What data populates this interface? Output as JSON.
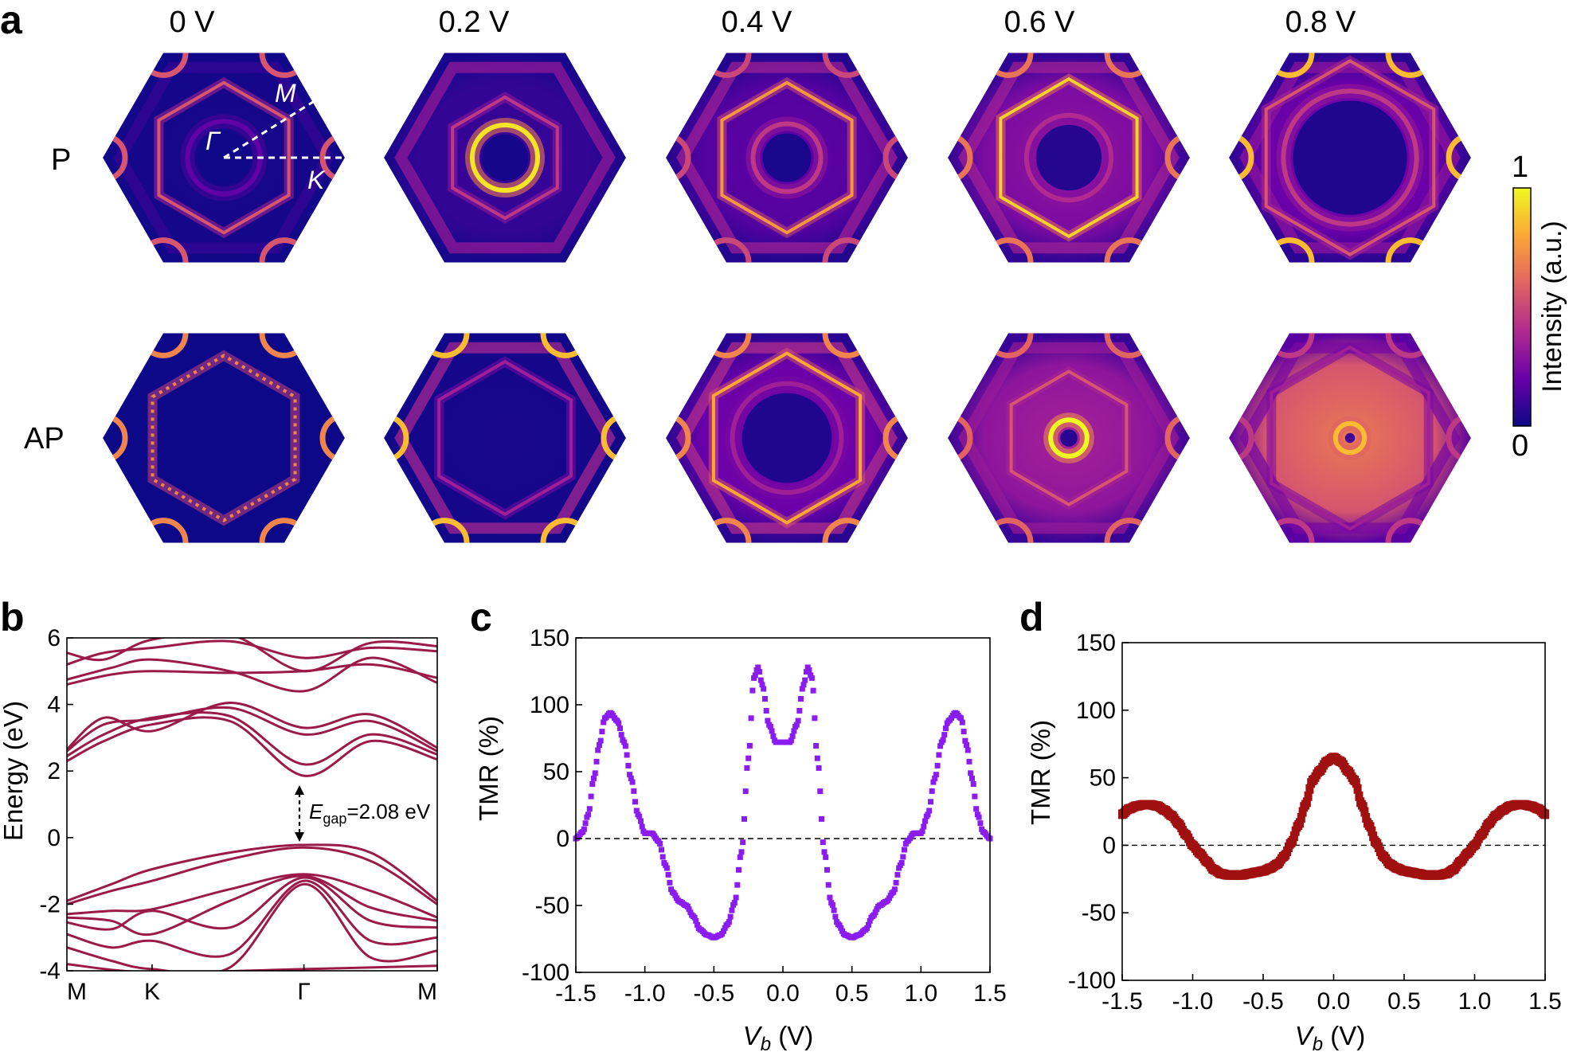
{
  "panel_labels": {
    "a": "a",
    "b": "b",
    "c": "c",
    "d": "d"
  },
  "panel_a": {
    "voltages": [
      "0 V",
      "0.2 V",
      "0.4 V",
      "0.6 V",
      "0.8 V"
    ],
    "rows": [
      "P",
      "AP"
    ],
    "k_labels": {
      "gamma": "Γ",
      "m": "M",
      "k": "K"
    },
    "colorbar": {
      "max": "1",
      "min": "0",
      "label": "Intensity (a.u.)",
      "colors": [
        "#0d0887",
        "#6a00a8",
        "#b12a90",
        "#e16462",
        "#fca636",
        "#f0f921"
      ]
    },
    "maps": [
      [
        {
          "outer_ring": 0.62,
          "outer_int": 0.55,
          "inner_ring": 0.3,
          "inner_int": 0.18,
          "corner_int": 0.55,
          "edge_int": 0.15,
          "fill": 0.02
        },
        {
          "outer_ring": 0.5,
          "outer_int": 0.45,
          "inner_ring": 0.27,
          "inner_int": 0.95,
          "corner_int": 0.05,
          "edge_int": 0.55,
          "fill": 0.08
        },
        {
          "outer_ring": 0.62,
          "outer_int": 0.75,
          "inner_ring": 0.28,
          "inner_int": 0.45,
          "corner_int": 0.5,
          "edge_int": 0.6,
          "fill": 0.15
        },
        {
          "outer_ring": 0.65,
          "outer_int": 0.9,
          "inner_ring": 0.35,
          "inner_int": 0.4,
          "corner_int": 0.65,
          "edge_int": 0.6,
          "fill": 0.25
        },
        {
          "outer_ring": 0.8,
          "outer_int": 0.55,
          "inner_ring": 0.55,
          "inner_int": 0.45,
          "corner_int": 0.85,
          "edge_int": 0.5,
          "fill": 0.2
        }
      ],
      [
        {
          "outer_ring": 0.68,
          "outer_int": 0.7,
          "inner_ring": 0.0,
          "inner_int": 0.0,
          "corner_int": 0.7,
          "edge_int": 0.05,
          "fill": 0.0
        },
        {
          "outer_ring": 0.63,
          "outer_int": 0.35,
          "inner_ring": 0.0,
          "inner_int": 0.0,
          "corner_int": 0.85,
          "edge_int": 0.65,
          "fill": 0.02
        },
        {
          "outer_ring": 0.7,
          "outer_int": 0.8,
          "inner_ring": 0.45,
          "inner_int": 0.35,
          "corner_int": 0.7,
          "edge_int": 0.7,
          "fill": 0.2
        },
        {
          "outer_ring": 0.55,
          "outer_int": 0.55,
          "inner_ring": 0.15,
          "inner_int": 1.0,
          "corner_int": 0.6,
          "edge_int": 0.55,
          "fill": 0.3
        },
        {
          "outer_ring": 0.75,
          "outer_int": 0.35,
          "inner_ring": 0.12,
          "inner_int": 0.85,
          "corner_int": 0.45,
          "edge_int": 0.4,
          "fill": 0.55
        }
      ]
    ]
  },
  "chart_data": [
    {
      "panel": "b",
      "type": "line",
      "ylabel": "Energy (eV)",
      "ylim": [
        -4,
        6
      ],
      "yticks": [
        "-4",
        "-2",
        "0",
        "2",
        "4",
        "6"
      ],
      "xtick_labels": [
        "M",
        "K",
        "Γ",
        "M"
      ],
      "xtick_positions": [
        0,
        0.23,
        0.64,
        1.0
      ],
      "annotation": {
        "main": "E",
        "sub": "gap",
        "rest": "=2.08 eV"
      },
      "gap": {
        "from": -0.22,
        "to": 1.86
      },
      "color": "#9b1b48",
      "bands": [
        [
          [
            0,
            4.6
          ],
          [
            0.12,
            4.9
          ],
          [
            0.23,
            5.0
          ],
          [
            0.44,
            4.95
          ],
          [
            0.64,
            5.0
          ],
          [
            0.82,
            5.2
          ],
          [
            1.0,
            4.8
          ]
        ],
        [
          [
            0,
            4.75
          ],
          [
            0.12,
            5.1
          ],
          [
            0.23,
            5.35
          ],
          [
            0.44,
            5.0
          ],
          [
            0.64,
            4.4
          ],
          [
            0.82,
            5.4
          ],
          [
            1.0,
            4.65
          ]
        ],
        [
          [
            0,
            5.2
          ],
          [
            0.1,
            5.55
          ],
          [
            0.23,
            5.7
          ],
          [
            0.44,
            5.9
          ],
          [
            0.64,
            5.4
          ],
          [
            0.82,
            5.7
          ],
          [
            1.0,
            5.6
          ]
        ],
        [
          [
            0,
            5.55
          ],
          [
            0.1,
            5.35
          ],
          [
            0.23,
            5.95
          ],
          [
            0.44,
            6.1
          ],
          [
            0.64,
            5.0
          ],
          [
            0.82,
            5.85
          ],
          [
            1.0,
            5.75
          ]
        ],
        [
          [
            0,
            2.3
          ],
          [
            0.1,
            2.9
          ],
          [
            0.23,
            3.4
          ],
          [
            0.44,
            3.5
          ],
          [
            0.64,
            1.86
          ],
          [
            0.82,
            2.9
          ],
          [
            1.0,
            2.35
          ]
        ],
        [
          [
            0,
            2.45
          ],
          [
            0.1,
            3.1
          ],
          [
            0.23,
            3.6
          ],
          [
            0.44,
            3.65
          ],
          [
            0.64,
            2.2
          ],
          [
            0.82,
            3.1
          ],
          [
            1.0,
            2.5
          ]
        ],
        [
          [
            0,
            2.6
          ],
          [
            0.1,
            3.4
          ],
          [
            0.23,
            3.55
          ],
          [
            0.44,
            3.9
          ],
          [
            0.64,
            3.1
          ],
          [
            0.82,
            3.5
          ],
          [
            1.0,
            2.6
          ]
        ],
        [
          [
            0,
            2.65
          ],
          [
            0.1,
            3.6
          ],
          [
            0.23,
            3.2
          ],
          [
            0.44,
            4.05
          ],
          [
            0.64,
            3.3
          ],
          [
            0.82,
            3.7
          ],
          [
            1.0,
            2.7
          ]
        ],
        [
          [
            0,
            -1.9
          ],
          [
            0.12,
            -1.4
          ],
          [
            0.23,
            -0.95
          ],
          [
            0.44,
            -0.45
          ],
          [
            0.64,
            -0.22
          ],
          [
            0.82,
            -0.45
          ],
          [
            1.0,
            -1.9
          ]
        ],
        [
          [
            0,
            -2.0
          ],
          [
            0.12,
            -1.6
          ],
          [
            0.23,
            -1.3
          ],
          [
            0.44,
            -0.65
          ],
          [
            0.64,
            -0.3
          ],
          [
            0.82,
            -0.7
          ],
          [
            1.0,
            -2.0
          ]
        ],
        [
          [
            0,
            -2.3
          ],
          [
            0.12,
            -2.2
          ],
          [
            0.23,
            -2.15
          ],
          [
            0.44,
            -1.55
          ],
          [
            0.64,
            -1.1
          ],
          [
            0.82,
            -1.6
          ],
          [
            1.0,
            -2.4
          ]
        ],
        [
          [
            0,
            -2.4
          ],
          [
            0.12,
            -2.5
          ],
          [
            0.23,
            -2.9
          ],
          [
            0.44,
            -1.9
          ],
          [
            0.64,
            -1.15
          ],
          [
            0.82,
            -2.1
          ],
          [
            1.0,
            -2.5
          ]
        ],
        [
          [
            0,
            -2.55
          ],
          [
            0.12,
            -2.75
          ],
          [
            0.23,
            -2.2
          ],
          [
            0.44,
            -2.7
          ],
          [
            0.64,
            -1.2
          ],
          [
            0.82,
            -2.5
          ],
          [
            1.0,
            -2.7
          ]
        ],
        [
          [
            0,
            -2.9
          ],
          [
            0.12,
            -3.3
          ],
          [
            0.23,
            -3.1
          ],
          [
            0.44,
            -3.5
          ],
          [
            0.64,
            -1.3
          ],
          [
            0.82,
            -3.1
          ],
          [
            1.0,
            -3.0
          ]
        ],
        [
          [
            0,
            -3.3
          ],
          [
            0.12,
            -3.7
          ],
          [
            0.23,
            -3.95
          ],
          [
            0.44,
            -3.9
          ],
          [
            0.64,
            -1.4
          ],
          [
            0.82,
            -3.6
          ],
          [
            1.0,
            -3.4
          ]
        ],
        [
          [
            0,
            -3.8
          ],
          [
            0.23,
            -4.05
          ],
          [
            0.64,
            -3.95
          ],
          [
            1.0,
            -3.85
          ]
        ]
      ]
    },
    {
      "panel": "c",
      "type": "scatter",
      "xlabel_main": "V",
      "xlabel_sub": "b",
      "xlabel_unit": " (V)",
      "ylabel": "TMR (%)",
      "xlim": [
        -1.5,
        1.5
      ],
      "ylim": [
        -100,
        150
      ],
      "xticks": [
        "-1.5",
        "-1.0",
        "-0.5",
        "0.0",
        "0.5",
        "1.0",
        "1.5"
      ],
      "yticks": [
        "-100",
        "-50",
        "0",
        "50",
        "100",
        "150"
      ],
      "color": "#8a1cf0",
      "x": [
        0.0,
        0.05,
        0.1,
        0.15,
        0.18,
        0.21,
        0.25,
        0.3,
        0.35,
        0.4,
        0.45,
        0.5,
        0.55,
        0.6,
        0.65,
        0.7,
        0.75,
        0.8,
        0.85,
        0.9,
        0.95,
        1.0,
        1.05,
        1.1,
        1.15,
        1.2,
        1.25,
        1.29,
        1.33,
        1.37,
        1.41,
        1.45,
        1.5
      ],
      "y": [
        72,
        72,
        85,
        115,
        128,
        120,
        60,
        -10,
        -48,
        -64,
        -72,
        -74,
        -72,
        -68,
        -58,
        -50,
        -47,
        -40,
        -20,
        -2,
        4,
        4,
        18,
        45,
        72,
        88,
        94,
        90,
        70,
        45,
        18,
        5,
        0
      ]
    },
    {
      "panel": "d",
      "type": "scatter",
      "xlabel_main": "V",
      "xlabel_sub": "b",
      "xlabel_unit": " (V)",
      "ylabel": "TMR (%)",
      "xlim": [
        -1.5,
        1.5
      ],
      "ylim": [
        -100,
        150
      ],
      "xticks": [
        "-1.5",
        "-1.0",
        "-0.5",
        "0.0",
        "0.5",
        "1.0",
        "1.5"
      ],
      "yticks": [
        "-100",
        "-50",
        "0",
        "50",
        "100",
        "150"
      ],
      "color": "#a01010",
      "x": [
        0.0,
        0.05,
        0.1,
        0.15,
        0.2,
        0.25,
        0.3,
        0.35,
        0.4,
        0.45,
        0.5,
        0.55,
        0.6,
        0.65,
        0.7,
        0.75,
        0.8,
        0.85,
        0.9,
        0.95,
        1.0,
        1.05,
        1.1,
        1.15,
        1.2,
        1.25,
        1.3,
        1.35,
        1.4,
        1.45,
        1.5
      ],
      "y": [
        65,
        62,
        55,
        48,
        30,
        15,
        2,
        -8,
        -14,
        -17,
        -19,
        -20,
        -21,
        -22,
        -22,
        -22,
        -21,
        -18,
        -12,
        -6,
        0,
        8,
        16,
        22,
        26,
        29,
        30,
        30,
        29,
        27,
        23
      ]
    }
  ]
}
